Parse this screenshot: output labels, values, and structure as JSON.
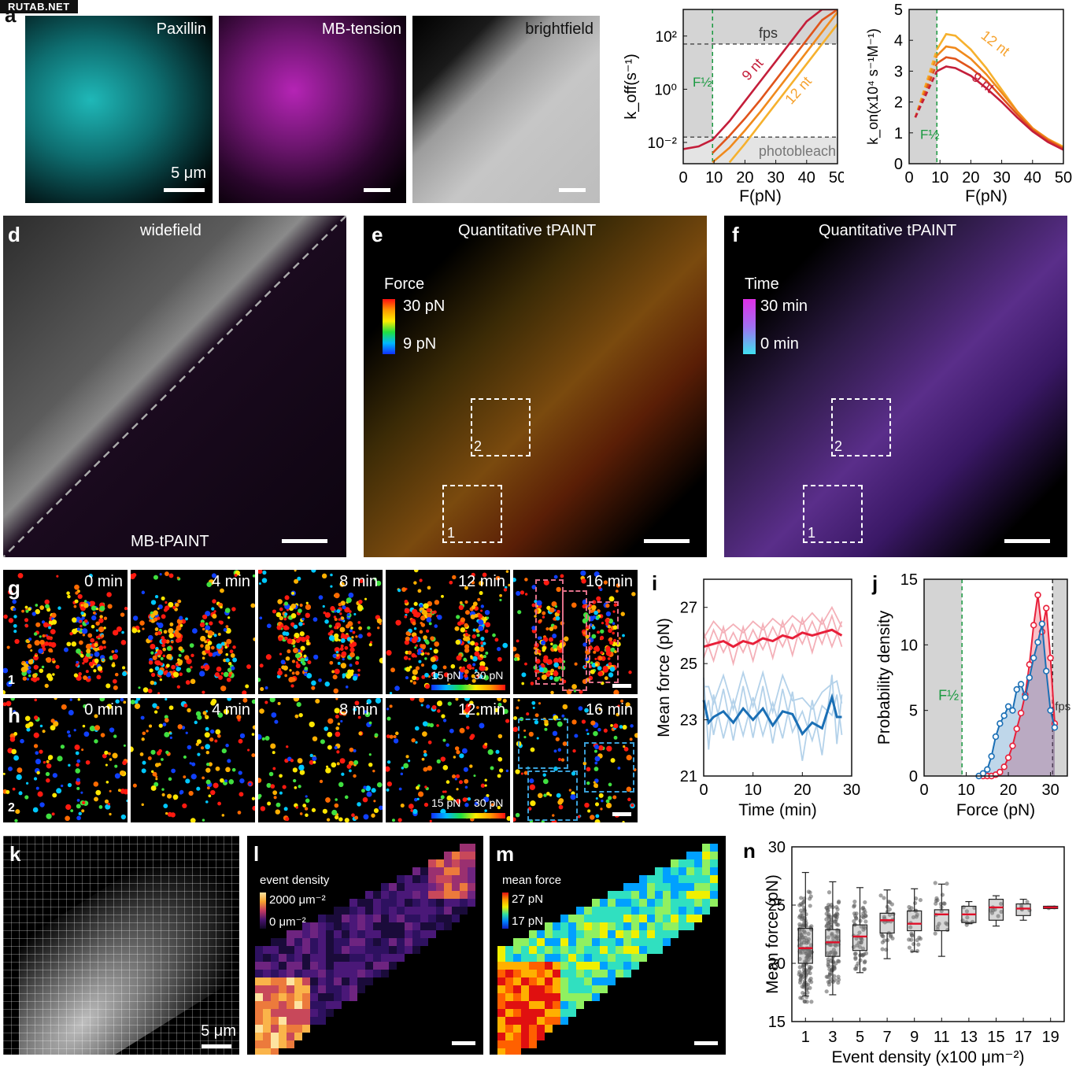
{
  "watermark": "RUTAB.NET",
  "panels": {
    "a": {
      "letter": "a",
      "labels": [
        "Paxillin",
        "MB-tension",
        "brightfield"
      ],
      "scale": "5 μm"
    },
    "d": {
      "letter": "d",
      "title": "widefield",
      "bottom": "MB-tPAINT"
    },
    "e": {
      "letter": "e",
      "title": "Quantitative tPAINT",
      "legend_title": "Force",
      "legend_max": "30 pN",
      "legend_min": "9 pN",
      "roi1": "1",
      "roi2": "2"
    },
    "f": {
      "letter": "f",
      "title": "Quantitative tPAINT",
      "legend_title": "Time",
      "legend_max": "30 min",
      "legend_min": "0 min",
      "roi1": "1",
      "roi2": "2"
    },
    "g": {
      "letter": "g",
      "times": [
        "0 min",
        "4 min",
        "8 min",
        "12 min",
        "16 min"
      ],
      "roi": "1",
      "cbar_min": "15 pN",
      "cbar_max": "30 pN"
    },
    "h": {
      "letter": "h",
      "times": [
        "0 min",
        "4 min",
        "8 min",
        "12 min",
        "16 min"
      ],
      "roi": "2",
      "cbar_min": "15 pN",
      "cbar_max": "30 pN"
    },
    "k": {
      "letter": "k",
      "scale": "5 μm"
    },
    "l": {
      "letter": "l",
      "legend_title": "event density",
      "legend_max": "2000 μm⁻²",
      "legend_min": "0 μm⁻²"
    },
    "m": {
      "letter": "m",
      "legend_title": "mean force",
      "legend_max": "27 pN",
      "legend_min": "17 pN"
    }
  },
  "chart_data": [
    {
      "id": "b",
      "type": "line",
      "letter": "b",
      "xlabel": "F(pN)",
      "ylabel": "k_off(s⁻¹)",
      "xlim": [
        0,
        50
      ],
      "ylim_log10": [
        -2.8,
        3.0
      ],
      "xticks": [
        "0",
        "10",
        "20",
        "30",
        "40",
        "50"
      ],
      "yticks": [
        "10⁻²",
        "10⁰",
        "10²"
      ],
      "annotations": {
        "fps": "fps",
        "photobleach": "photobleach",
        "fhalf": "F½",
        "nt9": "9 nt",
        "nt12": "12 nt"
      },
      "fhalf_x": 9.5,
      "fps_log": 1.7,
      "photobleach_log": -1.8,
      "series": [
        {
          "name": "9 nt",
          "color": "#c41e3a",
          "x": [
            0,
            5,
            9.5,
            15,
            20,
            25,
            30,
            35,
            40,
            45,
            50
          ],
          "log10y": [
            -2.25,
            -2.15,
            -1.9,
            -1.2,
            -0.45,
            0.3,
            1.05,
            1.8,
            2.55,
            3.0,
            3.0
          ]
        },
        {
          "x": [
            9.5,
            15,
            20,
            25,
            30,
            35,
            40,
            45,
            50
          ],
          "log10y": [
            -2.4,
            -1.75,
            -1.1,
            -0.4,
            0.35,
            1.1,
            1.85,
            2.6,
            3.0
          ],
          "color": "#e0541b"
        },
        {
          "x": [
            9.5,
            15,
            20,
            25,
            30,
            35,
            40,
            45,
            50
          ],
          "log10y": [
            -2.75,
            -2.2,
            -1.55,
            -0.85,
            -0.1,
            0.65,
            1.4,
            2.15,
            2.9
          ],
          "color": "#f08a1c"
        },
        {
          "name": "12 nt",
          "color": "#f6b12e",
          "x": [
            15,
            20,
            25,
            30,
            35,
            40,
            45,
            50
          ],
          "log10y": [
            -2.75,
            -2.05,
            -1.3,
            -0.55,
            0.2,
            0.95,
            1.7,
            2.45
          ]
        }
      ]
    },
    {
      "id": "c",
      "type": "line",
      "letter": "c",
      "xlabel": "F(pN)",
      "ylabel": "k_on(x10⁴ s⁻¹M⁻¹)",
      "xlim": [
        0,
        50
      ],
      "ylim": [
        0,
        5
      ],
      "xticks": [
        "0",
        "10",
        "20",
        "30",
        "40",
        "50"
      ],
      "yticks": [
        "0",
        "1",
        "2",
        "3",
        "4",
        "5"
      ],
      "annotations": {
        "fhalf": "F½",
        "nt9": "9 nt",
        "nt12": "12 nt"
      },
      "fhalf_x": 9,
      "series": [
        {
          "name": "12 nt",
          "color": "#f6b12e",
          "x": [
            2,
            9,
            12,
            15,
            20,
            25,
            30,
            35,
            40,
            45,
            50
          ],
          "y": [
            1.5,
            3.7,
            4.2,
            4.15,
            3.7,
            3.1,
            2.4,
            1.7,
            1.15,
            0.8,
            0.55
          ]
        },
        {
          "color": "#f08a1c",
          "x": [
            2,
            9,
            12,
            15,
            20,
            25,
            30,
            35,
            40,
            45,
            50
          ],
          "y": [
            1.5,
            3.5,
            3.8,
            3.75,
            3.4,
            2.9,
            2.3,
            1.7,
            1.15,
            0.8,
            0.5
          ]
        },
        {
          "color": "#e0541b",
          "x": [
            2,
            9,
            12,
            15,
            20,
            25,
            30,
            35,
            40,
            45,
            50
          ],
          "y": [
            1.5,
            3.25,
            3.45,
            3.4,
            3.1,
            2.7,
            2.15,
            1.6,
            1.1,
            0.75,
            0.5
          ]
        },
        {
          "name": "9 nt",
          "color": "#c41e3a",
          "x": [
            2,
            9,
            12,
            15,
            20,
            25,
            30,
            35,
            40,
            45,
            50
          ],
          "y": [
            1.5,
            3.0,
            3.15,
            3.1,
            2.85,
            2.45,
            2.0,
            1.5,
            1.05,
            0.7,
            0.45
          ]
        }
      ]
    },
    {
      "id": "i",
      "type": "line",
      "letter": "i",
      "xlabel": "Time (min)",
      "ylabel": "Mean force (pN)",
      "xlim": [
        0,
        30
      ],
      "ylim": [
        21,
        28
      ],
      "xticks": [
        "0",
        "10",
        "20",
        "30"
      ],
      "yticks": [
        "21",
        "23",
        "25",
        "27"
      ],
      "series": [
        {
          "color": "#e8203a",
          "x": [
            0,
            2,
            4,
            6,
            8,
            10,
            12,
            14,
            16,
            18,
            20,
            22,
            24,
            26,
            28
          ],
          "y": [
            25.6,
            25.7,
            25.8,
            25.6,
            25.8,
            25.7,
            25.9,
            25.8,
            26.0,
            25.9,
            26.1,
            26.0,
            26.1,
            26.2,
            26.0
          ]
        },
        {
          "color": "#1a6fb5",
          "x": [
            0,
            1,
            2,
            4,
            6,
            8,
            10,
            12,
            14,
            16,
            18,
            20,
            22,
            24,
            26,
            27,
            28
          ],
          "y": [
            23.7,
            22.9,
            23.1,
            23.3,
            22.9,
            23.4,
            23.0,
            23.4,
            22.8,
            23.3,
            23.2,
            22.5,
            22.9,
            22.7,
            23.8,
            23.1,
            23.1
          ]
        }
      ]
    },
    {
      "id": "j",
      "type": "area",
      "letter": "j",
      "xlabel": "Force (pN)",
      "ylabel": "Probability density",
      "xlim": [
        0,
        34
      ],
      "ylim": [
        0,
        15
      ],
      "xticks": [
        "0",
        "10",
        "20",
        "30"
      ],
      "yticks": [
        "0",
        "5",
        "10",
        "15"
      ],
      "annotations": {
        "fhalf": "F½",
        "fps": "fps"
      },
      "fhalf_x": 9,
      "fps_x": 30.5,
      "series": [
        {
          "color": "#e8203a",
          "x": [
            14,
            15,
            16,
            17,
            18,
            19,
            20,
            21,
            22,
            23,
            24,
            25,
            26,
            27,
            28,
            29,
            30,
            31
          ],
          "y": [
            0,
            0,
            0,
            0.1,
            0.3,
            0.7,
            1.4,
            2.3,
            3.6,
            4.8,
            6.2,
            8.5,
            11.5,
            13.8,
            11.0,
            12.8,
            9.0,
            4.0
          ]
        },
        {
          "color": "#1a6fb5",
          "x": [
            13,
            14,
            15,
            16,
            17,
            18,
            19,
            20,
            21,
            22,
            23,
            24,
            25,
            26,
            27,
            28,
            29,
            30,
            31
          ],
          "y": [
            0,
            0.2,
            0.5,
            1.5,
            3.0,
            4.0,
            4.6,
            5.3,
            5.0,
            6.6,
            7.0,
            6.0,
            7.5,
            9.0,
            10.2,
            11.6,
            8.0,
            5.0,
            3.7
          ]
        }
      ]
    },
    {
      "id": "n",
      "type": "box",
      "letter": "n",
      "xlabel": "Event density (x100 μm⁻²)",
      "ylabel": "Mean force (pN)",
      "ylim": [
        15,
        30
      ],
      "categories": [
        "1",
        "3",
        "5",
        "7",
        "9",
        "11",
        "13",
        "15",
        "17",
        "19"
      ],
      "yticks": [
        "15",
        "20",
        "25",
        "30"
      ],
      "boxes": [
        {
          "q1": 20.0,
          "median": 21.3,
          "q3": 23.0,
          "min": 17.2,
          "max": 27.8
        },
        {
          "q1": 20.6,
          "median": 21.8,
          "q3": 22.9,
          "min": 17.3,
          "max": 27.0
        },
        {
          "q1": 21.1,
          "median": 22.3,
          "q3": 23.3,
          "min": 19.2,
          "max": 26.5
        },
        {
          "q1": 22.6,
          "median": 23.7,
          "q3": 24.3,
          "min": 20.4,
          "max": 26.3
        },
        {
          "q1": 22.8,
          "median": 23.4,
          "q3": 24.5,
          "min": 21.0,
          "max": 26.4
        },
        {
          "q1": 22.8,
          "median": 24.2,
          "q3": 24.6,
          "min": 20.6,
          "max": 26.8
        },
        {
          "q1": 23.5,
          "median": 24.2,
          "q3": 24.9,
          "min": 23.4,
          "max": 25.3
        },
        {
          "q1": 23.7,
          "median": 24.8,
          "q3": 25.5,
          "min": 23.2,
          "max": 25.8
        },
        {
          "q1": 24.1,
          "median": 24.7,
          "q3": 25.1,
          "min": 23.7,
          "max": 25.5
        },
        {
          "q1": 24.7,
          "median": 24.8,
          "q3": 24.9,
          "min": 24.7,
          "max": 24.9
        }
      ]
    }
  ]
}
